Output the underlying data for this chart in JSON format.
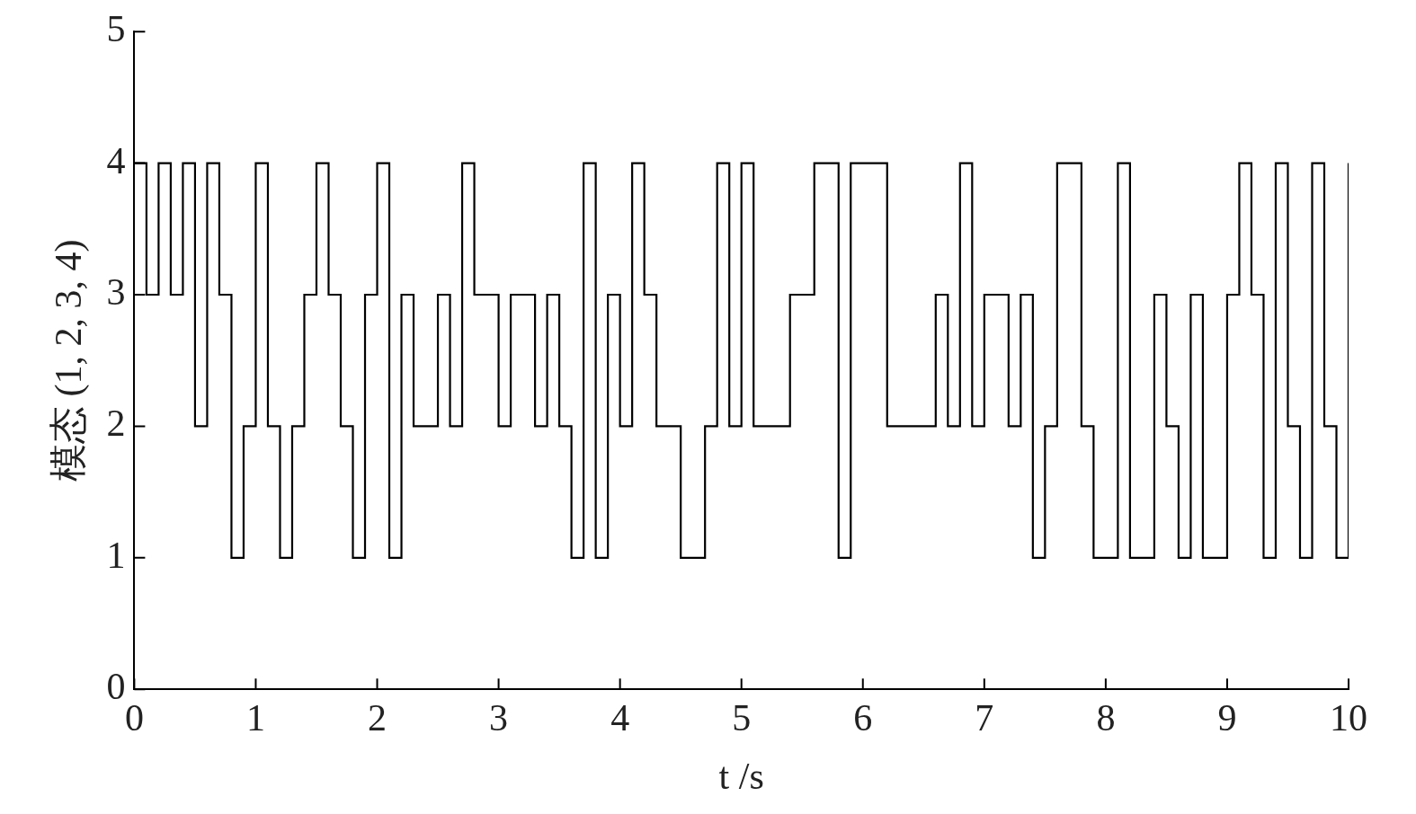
{
  "chart_data": {
    "type": "step",
    "xlabel": "t /s",
    "ylabel": "模态 (1, 2, 3, 4)",
    "x": [
      0,
      0.1,
      0.2,
      0.3,
      0.4,
      0.5,
      0.6,
      0.7,
      0.8,
      0.9,
      1,
      1.1,
      1.2,
      1.3,
      1.4,
      1.5,
      1.6,
      1.7,
      1.8,
      1.9,
      2,
      2.1,
      2.2,
      2.3,
      2.4,
      2.5,
      2.6,
      2.7,
      2.8,
      2.9,
      3,
      3.1,
      3.2,
      3.3,
      3.4,
      3.5,
      3.6,
      3.7,
      3.8,
      3.9,
      4,
      4.1,
      4.2,
      4.3,
      4.4,
      4.5,
      4.6,
      4.7,
      4.8,
      4.9,
      5,
      5.1,
      5.2,
      5.3,
      5.4,
      5.5,
      5.6,
      5.7,
      5.8,
      5.9,
      6,
      6.1,
      6.2,
      6.3,
      6.4,
      6.5,
      6.6,
      6.7,
      6.8,
      6.9,
      7,
      7.1,
      7.2,
      7.3,
      7.4,
      7.5,
      7.6,
      7.7,
      7.8,
      7.9,
      8,
      8.1,
      8.2,
      8.3,
      8.4,
      8.5,
      8.6,
      8.7,
      8.8,
      8.9,
      9,
      9.1,
      9.2,
      9.3,
      9.4,
      9.5,
      9.6,
      9.7,
      9.8,
      9.9,
      10
    ],
    "series": [
      {
        "color": "#000000",
        "values": [
          4,
          3,
          4,
          3,
          4,
          2,
          4,
          3,
          1,
          2,
          4,
          2,
          1,
          2,
          3,
          4,
          3,
          2,
          1,
          3,
          4,
          1,
          3,
          2,
          2,
          3,
          2,
          4,
          3,
          3,
          2,
          3,
          3,
          2,
          3,
          2,
          1,
          4,
          1,
          3,
          2,
          4,
          3,
          2,
          2,
          1,
          1,
          2,
          4,
          2,
          4,
          2,
          2,
          2,
          3,
          3,
          4,
          4,
          1,
          4,
          4,
          4,
          2,
          2,
          2,
          2,
          3,
          2,
          4,
          2,
          3,
          3,
          2,
          3,
          1,
          2,
          4,
          4,
          2,
          1,
          1,
          4,
          1,
          1,
          3,
          2,
          1,
          3,
          1,
          1,
          3,
          4,
          3,
          1,
          4,
          2,
          1,
          4,
          2,
          1,
          4
        ]
      }
    ],
    "xlim": [
      0,
      10
    ],
    "xticks": [
      0,
      1,
      2,
      3,
      4,
      5,
      6,
      7,
      8,
      9,
      10
    ],
    "ylim": [
      0,
      5
    ],
    "yticks": [
      0,
      1,
      2,
      3,
      4,
      5
    ],
    "legend": false
  }
}
